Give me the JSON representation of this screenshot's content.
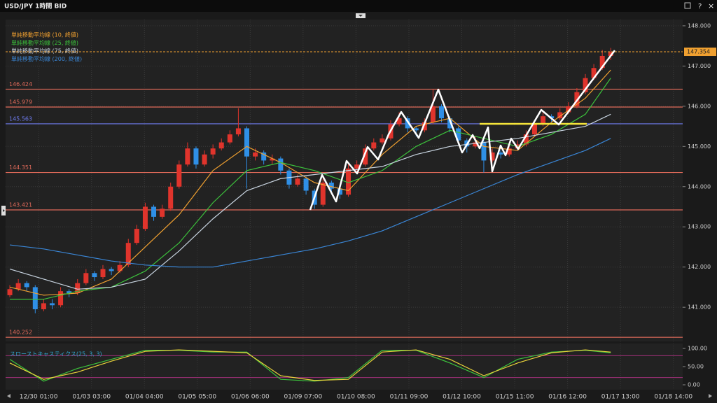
{
  "chart_data": {
    "type": "candlestick",
    "title": "USD/JPY 1時間 BID",
    "window_buttons": [
      "?",
      "×"
    ],
    "up_color": "#e0342c",
    "down_color": "#2f8fe6",
    "xlim": [
      0,
      80
    ],
    "xticks": [
      {
        "value": 3.9,
        "label": "12/30 01:00"
      },
      {
        "value": 10.15,
        "label": "01/03 03:00"
      },
      {
        "value": 16.4,
        "label": "01/04 04:00"
      },
      {
        "value": 22.65,
        "label": "01/05 05:00"
      },
      {
        "value": 28.9,
        "label": "01/06 06:00"
      },
      {
        "value": 35.15,
        "label": "01/09 07:00"
      },
      {
        "value": 41.4,
        "label": "01/10 08:00"
      },
      {
        "value": 47.65,
        "label": "01/11 09:00"
      },
      {
        "value": 53.9,
        "label": "01/12 10:00"
      },
      {
        "value": 60.15,
        "label": "01/15 11:00"
      },
      {
        "value": 66.4,
        "label": "01/16 12:00"
      },
      {
        "value": 72.65,
        "label": "01/17 13:00"
      },
      {
        "value": 78.9,
        "label": "01/18 14:00"
      }
    ],
    "ylim": [
      140.15,
      148.12
    ],
    "yticks": [
      {
        "value": 141,
        "label": "141.000"
      },
      {
        "value": 142,
        "label": "142.000"
      },
      {
        "value": 143,
        "label": "143.000"
      },
      {
        "value": 144,
        "label": "144.000"
      },
      {
        "value": 145,
        "label": "145.000"
      },
      {
        "value": 146,
        "label": "146.000"
      },
      {
        "value": 147,
        "label": "147.000"
      },
      {
        "value": 148,
        "label": "148.000"
      }
    ],
    "grid": true,
    "current_price": 147.354,
    "current_price_color": "#f0a030",
    "levels": [
      146.424,
      145.979,
      145.563,
      144.351,
      143.421,
      140.252
    ],
    "level_colors": [
      "#e06a5a",
      "#e06a5a",
      "#6f7cf0",
      "#e06a5a",
      "#e06a5a",
      "#e06a5a"
    ],
    "candles": [
      [
        141.3,
        141.55,
        141.25,
        141.45
      ],
      [
        141.45,
        141.7,
        141.4,
        141.6
      ],
      [
        141.6,
        141.65,
        141.4,
        141.5
      ],
      [
        141.5,
        141.55,
        140.85,
        140.95
      ],
      [
        140.95,
        141.2,
        140.9,
        141.1
      ],
      [
        141.1,
        141.2,
        140.95,
        141.05
      ],
      [
        141.05,
        141.5,
        141.0,
        141.4
      ],
      [
        141.4,
        141.45,
        141.25,
        141.35
      ],
      [
        141.35,
        141.7,
        141.3,
        141.6
      ],
      [
        141.6,
        141.95,
        141.55,
        141.85
      ],
      [
        141.85,
        141.9,
        141.65,
        141.75
      ],
      [
        141.75,
        142.05,
        141.7,
        141.95
      ],
      [
        141.95,
        142.0,
        141.8,
        141.9
      ],
      [
        141.9,
        142.15,
        141.85,
        142.05
      ],
      [
        142.05,
        142.7,
        142.0,
        142.6
      ],
      [
        142.6,
        143.05,
        142.55,
        142.95
      ],
      [
        142.95,
        143.6,
        142.9,
        143.5
      ],
      [
        143.5,
        143.55,
        143.15,
        143.25
      ],
      [
        143.25,
        143.55,
        143.2,
        143.45
      ],
      [
        143.45,
        144.1,
        143.4,
        144.0
      ],
      [
        144.0,
        144.65,
        143.95,
        144.55
      ],
      [
        144.55,
        145.1,
        144.5,
        144.95
      ],
      [
        144.95,
        145.0,
        144.45,
        144.55
      ],
      [
        144.55,
        144.9,
        144.5,
        144.8
      ],
      [
        144.8,
        145.05,
        144.7,
        144.95
      ],
      [
        144.95,
        145.2,
        144.9,
        145.1
      ],
      [
        145.1,
        145.4,
        145.05,
        145.3
      ],
      [
        145.3,
        145.95,
        145.25,
        145.45
      ],
      [
        145.45,
        145.5,
        143.95,
        144.75
      ],
      [
        144.75,
        144.95,
        144.65,
        144.85
      ],
      [
        144.85,
        144.9,
        144.55,
        144.65
      ],
      [
        144.65,
        144.8,
        144.55,
        144.7
      ],
      [
        144.7,
        144.75,
        144.3,
        144.4
      ],
      [
        144.4,
        144.45,
        143.95,
        144.05
      ],
      [
        144.05,
        144.3,
        144.0,
        144.2
      ],
      [
        144.2,
        144.25,
        143.8,
        143.9
      ],
      [
        143.9,
        143.95,
        143.45,
        143.55
      ],
      [
        143.55,
        144.2,
        143.5,
        144.1
      ],
      [
        144.1,
        144.15,
        143.85,
        143.95
      ],
      [
        143.95,
        144.0,
        143.7,
        143.8
      ],
      [
        143.8,
        144.55,
        143.75,
        144.45
      ],
      [
        144.45,
        144.65,
        144.35,
        144.55
      ],
      [
        144.55,
        145.05,
        144.5,
        144.95
      ],
      [
        144.95,
        145.2,
        144.9,
        145.1
      ],
      [
        145.1,
        145.3,
        145.05,
        145.2
      ],
      [
        145.2,
        145.65,
        145.15,
        145.55
      ],
      [
        145.55,
        145.85,
        145.5,
        145.7
      ],
      [
        145.7,
        145.75,
        145.35,
        145.45
      ],
      [
        145.45,
        145.5,
        145.25,
        145.4
      ],
      [
        145.4,
        145.7,
        145.35,
        145.6
      ],
      [
        145.6,
        146.42,
        145.55,
        146.0
      ],
      [
        146.0,
        146.05,
        145.6,
        145.7
      ],
      [
        145.7,
        145.75,
        145.35,
        145.45
      ],
      [
        145.45,
        145.5,
        145.05,
        145.15
      ],
      [
        145.15,
        145.2,
        144.85,
        145.0
      ],
      [
        145.0,
        145.25,
        144.95,
        145.1
      ],
      [
        145.1,
        145.15,
        144.35,
        144.65
      ],
      [
        144.65,
        144.95,
        144.6,
        144.85
      ],
      [
        144.85,
        144.9,
        144.7,
        144.8
      ],
      [
        144.8,
        145.05,
        144.75,
        144.95
      ],
      [
        144.95,
        145.15,
        144.9,
        145.05
      ],
      [
        145.05,
        145.4,
        145.0,
        145.3
      ],
      [
        145.3,
        145.65,
        145.25,
        145.55
      ],
      [
        145.55,
        145.85,
        145.5,
        145.75
      ],
      [
        145.75,
        145.8,
        145.6,
        145.7
      ],
      [
        145.7,
        145.95,
        145.65,
        145.85
      ],
      [
        145.85,
        146.1,
        145.8,
        146.0
      ],
      [
        146.0,
        146.45,
        145.95,
        146.35
      ],
      [
        146.35,
        146.8,
        146.3,
        146.7
      ],
      [
        146.7,
        147.05,
        146.65,
        146.95
      ],
      [
        146.95,
        147.4,
        146.9,
        147.25
      ],
      [
        147.25,
        147.45,
        147.15,
        147.35
      ]
    ],
    "ma_x": [
      0,
      4,
      8,
      12,
      16,
      20,
      24,
      28,
      32,
      36,
      40,
      44,
      48,
      52,
      56,
      60,
      64,
      68,
      71
    ],
    "moving_averages": [
      {
        "name": "単純移動平均線 (10, 終値)",
        "color": "#f0a030",
        "values": [
          141.5,
          141.3,
          141.35,
          141.7,
          142.5,
          143.3,
          144.4,
          145.0,
          144.6,
          144.1,
          143.9,
          144.8,
          145.5,
          145.7,
          145.0,
          144.9,
          145.6,
          146.2,
          146.9
        ]
      },
      {
        "name": "単純移動平均線 (25, 終値)",
        "color": "#3cc23c",
        "values": [
          141.2,
          141.2,
          141.4,
          141.5,
          141.9,
          142.6,
          143.6,
          144.4,
          144.6,
          144.4,
          144.1,
          144.4,
          145.0,
          145.4,
          145.2,
          145.0,
          145.3,
          145.8,
          146.7
        ]
      },
      {
        "name": "単純移動平均線 (75, 終値)",
        "color": "#c8d4e0",
        "values": [
          141.95,
          141.7,
          141.45,
          141.5,
          141.7,
          142.4,
          143.2,
          143.9,
          144.2,
          144.3,
          144.4,
          144.5,
          144.8,
          145.0,
          145.1,
          145.2,
          145.35,
          145.5,
          145.8
        ]
      },
      {
        "name": "単純移動平均線 (200, 終値)",
        "color": "#3a86d6",
        "values": [
          142.55,
          142.45,
          142.3,
          142.15,
          142.05,
          142.0,
          142.0,
          142.15,
          142.3,
          142.45,
          142.65,
          142.9,
          143.25,
          143.6,
          143.95,
          144.3,
          144.6,
          144.9,
          145.2
        ]
      }
    ],
    "stochastic": {
      "label": "スローストキャスティクス(25, 3, 3)",
      "ylim": [
        0,
        100
      ],
      "yticks": [
        {
          "value": 0,
          "label": "0.00"
        },
        {
          "value": 50,
          "label": "50.00"
        },
        {
          "value": 100,
          "label": "100.00"
        }
      ],
      "bands": [
        80,
        20
      ],
      "band_color": "#a0307a",
      "series": [
        {
          "color": "#3cc23c",
          "values": [
            70,
            10,
            45,
            70,
            95,
            95,
            90,
            90,
            15,
            10,
            20,
            95,
            95,
            60,
            20,
            70,
            90,
            95,
            88
          ]
        },
        {
          "color": "#e8d23a",
          "values": [
            60,
            15,
            35,
            65,
            92,
            96,
            92,
            88,
            25,
            12,
            15,
            90,
            96,
            70,
            25,
            60,
            88,
            96,
            90
          ]
        }
      ]
    }
  }
}
